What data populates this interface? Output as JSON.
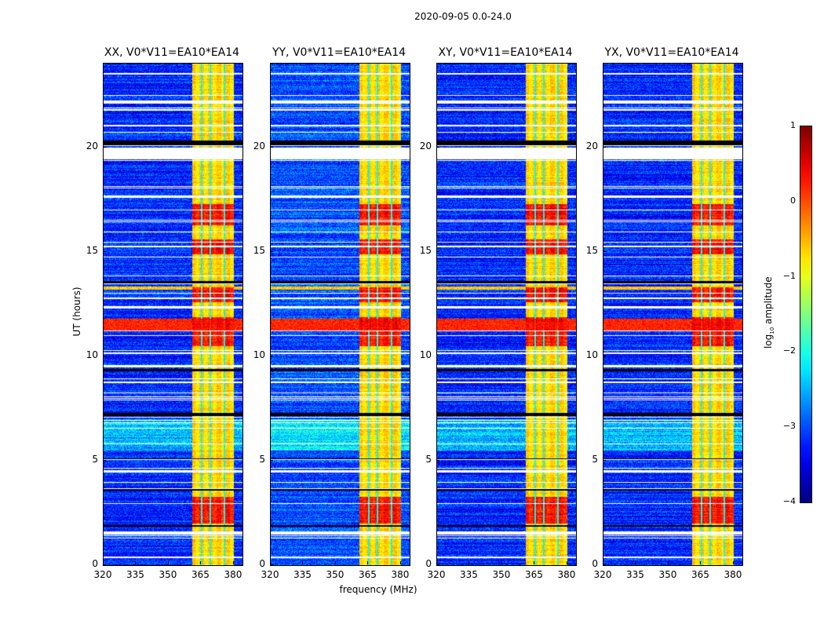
{
  "chart_data": {
    "type": "heatmap",
    "title": "2020-09-05 0.0-24.0",
    "xlabel": "frequency (MHz)",
    "ylabel": "UT (hours)",
    "xlim": [
      320,
      384
    ],
    "ylim": [
      0,
      24
    ],
    "xticks": [
      "320",
      "335",
      "350",
      "365",
      "380"
    ],
    "xtick_values": [
      320,
      335,
      350,
      365,
      380
    ],
    "yticks": [
      "0",
      "5",
      "10",
      "15",
      "20"
    ],
    "ytick_values": [
      0,
      5,
      10,
      15,
      20
    ],
    "colormap": "jet",
    "colorbar": {
      "label_main": "log",
      "label_sub": "10",
      "label_rest": " amplitude",
      "range": [
        -4,
        1
      ],
      "ticks": [
        "1",
        "0",
        "−1",
        "−2",
        "−3",
        "−4"
      ],
      "tick_values": [
        1,
        0,
        -1,
        -2,
        -3,
        -4
      ]
    },
    "panels": [
      {
        "title": "XX, V0*V11=EA10*EA14",
        "noise_level": -3.2
      },
      {
        "title": "YY, V0*V11=EA10*EA14",
        "noise_level": -3.0
      },
      {
        "title": "XY, V0*V11=EA10*EA14",
        "noise_level": -3.2
      },
      {
        "title": "YX, V0*V11=EA10*EA14",
        "noise_level": -3.2
      }
    ],
    "band": {
      "fmin": 360.5,
      "fmax": 380,
      "level": -0.8,
      "channel_gaps_mhz": [
        365,
        369,
        375.5
      ]
    },
    "flagged_hours": [
      [
        19.45,
        20.0
      ],
      [
        1.5,
        1.62
      ],
      [
        4.45,
        4.58
      ],
      [
        9.5,
        9.6
      ],
      [
        17.6,
        17.7
      ],
      [
        0.35,
        0.42
      ],
      [
        23.5,
        23.55
      ],
      [
        21.0,
        21.05
      ],
      [
        22.2,
        22.25
      ]
    ],
    "black_hours": [
      [
        20.1,
        20.35
      ],
      [
        13.45,
        13.62
      ],
      [
        9.3,
        9.42
      ],
      [
        7.15,
        7.3
      ],
      [
        1.85,
        1.92
      ],
      [
        3.6,
        3.7
      ],
      [
        5.05,
        5.12
      ]
    ],
    "broadband_rfi_hours": [
      [
        11.2,
        11.8,
        0.2
      ],
      [
        13.2,
        13.35,
        -0.6
      ]
    ],
    "strong_band_hours": [
      [
        2.0,
        3.3
      ],
      [
        12.6,
        13.3
      ],
      [
        14.9,
        15.6
      ],
      [
        10.5,
        11.9
      ],
      [
        16.3,
        17.3
      ]
    ],
    "green_hours": [
      [
        5.5,
        7.0
      ]
    ]
  }
}
